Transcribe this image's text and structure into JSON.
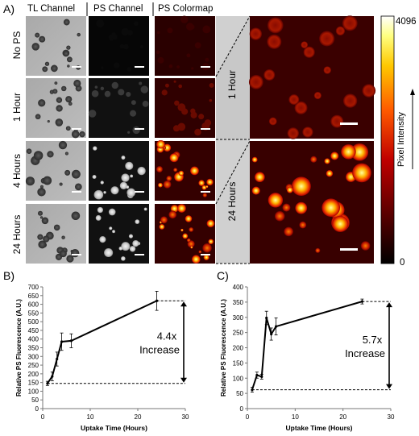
{
  "panel_labels": {
    "a": "A)",
    "b": "B)",
    "c": "C)"
  },
  "columns": [
    "TL Channel",
    "PS Channel",
    "PS Colormap"
  ],
  "rows": [
    "No PS",
    "1 Hour",
    "4 Hours",
    "24 Hours"
  ],
  "zoom_labels": [
    "1 Hour",
    "24 Hours"
  ],
  "colorbar": {
    "max_label": "4096",
    "min_label": "0",
    "title": "Pixel Intensity"
  },
  "chart_data": [
    {
      "type": "line",
      "panel": "B)",
      "xlabel": "Uptake Time (Hours)",
      "ylabel": "Relative PS Fluorescence (A.U.)",
      "xlim": [
        0,
        30
      ],
      "ylim": [
        0,
        700
      ],
      "xticks": [
        0,
        10,
        20,
        30
      ],
      "yticks": [
        0,
        50,
        100,
        150,
        200,
        250,
        300,
        350,
        400,
        450,
        500,
        550,
        600,
        650,
        700
      ],
      "x": [
        1,
        2,
        3,
        4,
        6,
        24
      ],
      "y": [
        145,
        185,
        285,
        385,
        390,
        620
      ],
      "err": [
        12,
        25,
        40,
        50,
        40,
        55
      ],
      "baseline": 145,
      "annotation": {
        "line1": "4.4x",
        "line2": "Increase"
      }
    },
    {
      "type": "line",
      "panel": "C)",
      "xlabel": "Uptake Time (Hours)",
      "ylabel": "Relative PS Fluorescence (A.U.)",
      "xlim": [
        0,
        30
      ],
      "ylim": [
        0,
        400
      ],
      "xticks": [
        0,
        10,
        20,
        30
      ],
      "yticks": [
        0,
        50,
        100,
        150,
        200,
        250,
        300,
        350,
        400
      ],
      "x": [
        1,
        2,
        3,
        4,
        5,
        6,
        24
      ],
      "y": [
        62,
        110,
        105,
        298,
        245,
        270,
        352
      ],
      "err": [
        8,
        10,
        8,
        22,
        20,
        28,
        8
      ],
      "baseline": 62,
      "annotation": {
        "line1": "5.7x",
        "line2": "Increase"
      }
    }
  ]
}
